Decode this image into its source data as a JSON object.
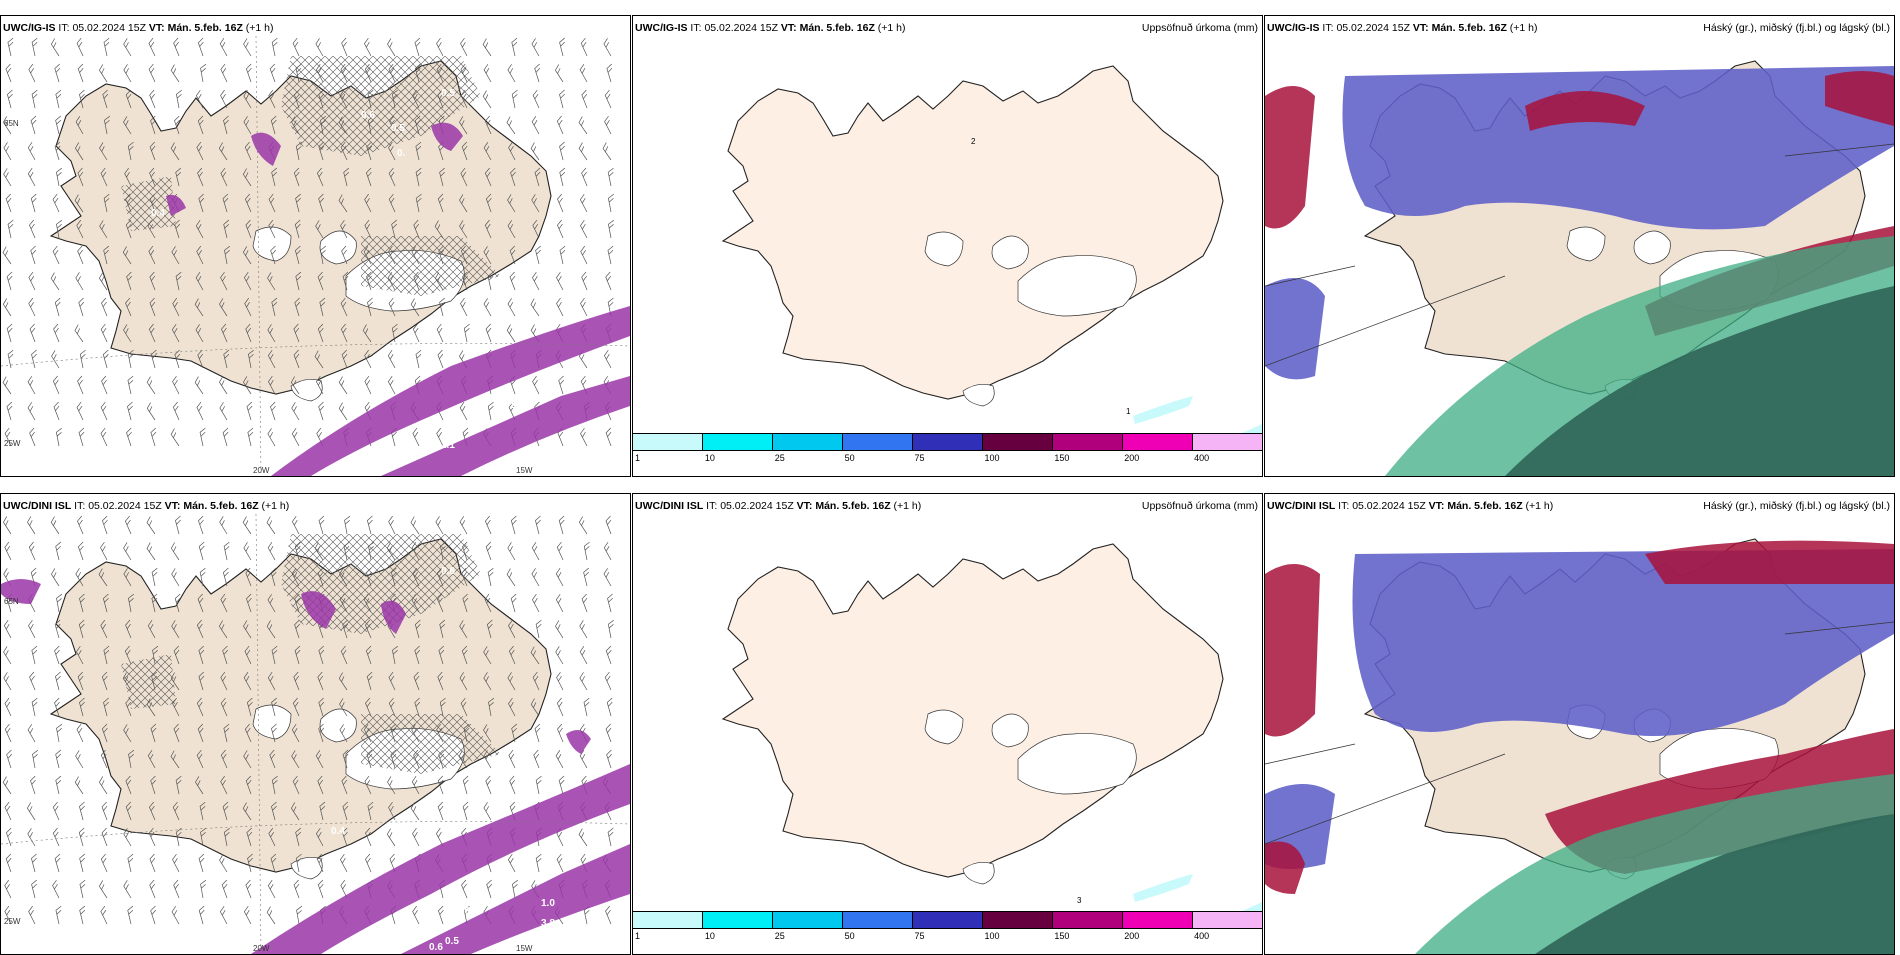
{
  "rows": [
    {
      "model": "UWC/IG-IS",
      "panels": [
        {
          "it_label": "IT:",
          "it_value": "05.02.2024 15Z",
          "vt_label": "VT:",
          "vt_value": "Mán. 5.feb. 16Z",
          "lead": "(+1 h)",
          "right_title": ""
        },
        {
          "it_label": "IT:",
          "it_value": "05.02.2024 15Z",
          "vt_label": "VT:",
          "vt_value": "Mán. 5.feb. 16Z",
          "lead": "(+1 h)",
          "right_title": "Uppsöfnuð úrkoma (mm)"
        },
        {
          "it_label": "IT:",
          "it_value": "05.02.2024 15Z",
          "vt_label": "VT:",
          "vt_value": "Mán. 5.feb. 16Z",
          "lead": "(+1 h)",
          "right_title": "Háský (gr.), miðský (fj.bl.) og lágský (bl.)"
        }
      ],
      "precip_values": [
        "0.5",
        "0.6",
        "0.5",
        "0.",
        "0.4",
        "2.1",
        "1.3",
        "2.1",
        "0.7"
      ],
      "accum_marks": [
        "1",
        "2"
      ],
      "grid_labels": [
        "20W",
        "15W",
        "25W",
        "65N"
      ]
    },
    {
      "model": "UWC/DINI ISL",
      "panels": [
        {
          "it_label": "IT:",
          "it_value": "05.02.2024 15Z",
          "vt_label": "VT:",
          "vt_value": "Mán. 5.feb. 16Z",
          "lead": "(+1 h)",
          "right_title": ""
        },
        {
          "it_label": "IT:",
          "it_value": "05.02.2024 15Z",
          "vt_label": "VT:",
          "vt_value": "Mán. 5.feb. 16Z",
          "lead": "(+1 h)",
          "right_title": "Uppsöfnuð úrkoma (mm)"
        },
        {
          "it_label": "IT:",
          "it_value": "05.02.2024 15Z",
          "vt_label": "VT:",
          "vt_value": "Mán. 5.feb. 16Z",
          "lead": "(+1 h)",
          "right_title": "Háský (gr.), miðský (fj.bl.) og lágský (bl.)"
        }
      ],
      "precip_values": [
        "0.6",
        "0.4",
        "2.3",
        "3.0",
        "0.5",
        "1.0",
        "3.8",
        "1.6",
        "0.5",
        "0.6"
      ],
      "accum_marks": [
        "3"
      ],
      "grid_labels": [
        "20W",
        "15W",
        "25W",
        "65N"
      ]
    }
  ],
  "legend": {
    "ticks": [
      "1",
      "10",
      "25",
      "50",
      "75",
      "100",
      "150",
      "200",
      "400"
    ],
    "colors": [
      "#c8fafc",
      "#00eef5",
      "#00c8ee",
      "#3275f0",
      "#2f30b7",
      "#66003f",
      "#b0007c",
      "#f000b4",
      "#f5b4f5"
    ]
  },
  "colors": {
    "land": "#efe2d2",
    "land_accum": "#fdefe3",
    "precip": "#9a36a8",
    "high_cloud": "#5f5fc8",
    "mid_cloud": "#3dae84",
    "low_cloud": "#2f6556",
    "red_cloud": "#a8123c"
  }
}
